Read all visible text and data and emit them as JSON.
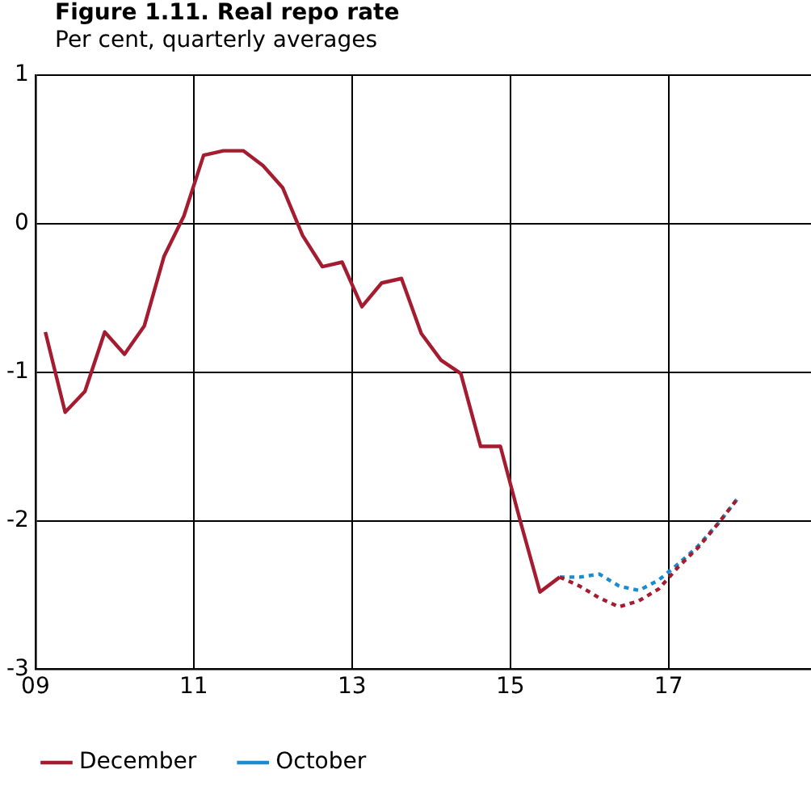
{
  "chart_data": {
    "type": "line",
    "title": "Figure 1.11. Real repo rate",
    "subtitle": "Per cent, quarterly averages",
    "xlim": [
      9,
      18.8
    ],
    "xticks": [
      {
        "value": 9,
        "label": "09"
      },
      {
        "value": 11,
        "label": "11"
      },
      {
        "value": 13,
        "label": "13"
      },
      {
        "value": 15,
        "label": "15"
      },
      {
        "value": 17,
        "label": "17"
      }
    ],
    "ylim": [
      -3,
      1
    ],
    "yticks": [
      -3,
      -2,
      -1,
      0,
      1
    ],
    "grid": true,
    "legend": "bottom",
    "marker": "none",
    "series": [
      {
        "color": "#a51c30",
        "line_style": "solid",
        "x": [
          9.125,
          9.375,
          9.625,
          9.875,
          10.125,
          10.375,
          10.625,
          10.875,
          11.125,
          11.375,
          11.625,
          11.875,
          12.125,
          12.375,
          12.625,
          12.875,
          13.125,
          13.375,
          13.625,
          13.875,
          14.125,
          14.375,
          14.625,
          14.875,
          15.125,
          15.375,
          15.625
        ],
        "values": [
          -0.73,
          -1.27,
          -1.13,
          -0.73,
          -0.88,
          -0.69,
          -0.22,
          0.05,
          0.46,
          0.49,
          0.49,
          0.39,
          0.24,
          -0.08,
          -0.29,
          -0.26,
          -0.56,
          -0.4,
          -0.37,
          -0.74,
          -0.92,
          -1.01,
          -1.5,
          -1.5,
          -2.0,
          -2.48,
          -2.38
        ]
      },
      {
        "name": "December",
        "color": "#a51c30",
        "line_style": "dotted",
        "x": [
          15.625,
          15.875,
          16.125,
          16.375,
          16.625,
          16.875,
          17.125,
          17.375,
          17.625,
          17.875
        ],
        "values": [
          -2.38,
          -2.44,
          -2.52,
          -2.58,
          -2.54,
          -2.46,
          -2.31,
          -2.18,
          -2.02,
          -1.85
        ]
      },
      {
        "name": "October",
        "color": "#1a8ccf",
        "line_style": "dotted",
        "x": [
          15.625,
          15.875,
          16.125,
          16.375,
          16.625,
          16.875,
          17.125,
          17.375,
          17.625,
          17.875
        ],
        "values": [
          -2.38,
          -2.38,
          -2.36,
          -2.44,
          -2.47,
          -2.4,
          -2.29,
          -2.17,
          -2.02,
          -1.85
        ]
      }
    ]
  }
}
